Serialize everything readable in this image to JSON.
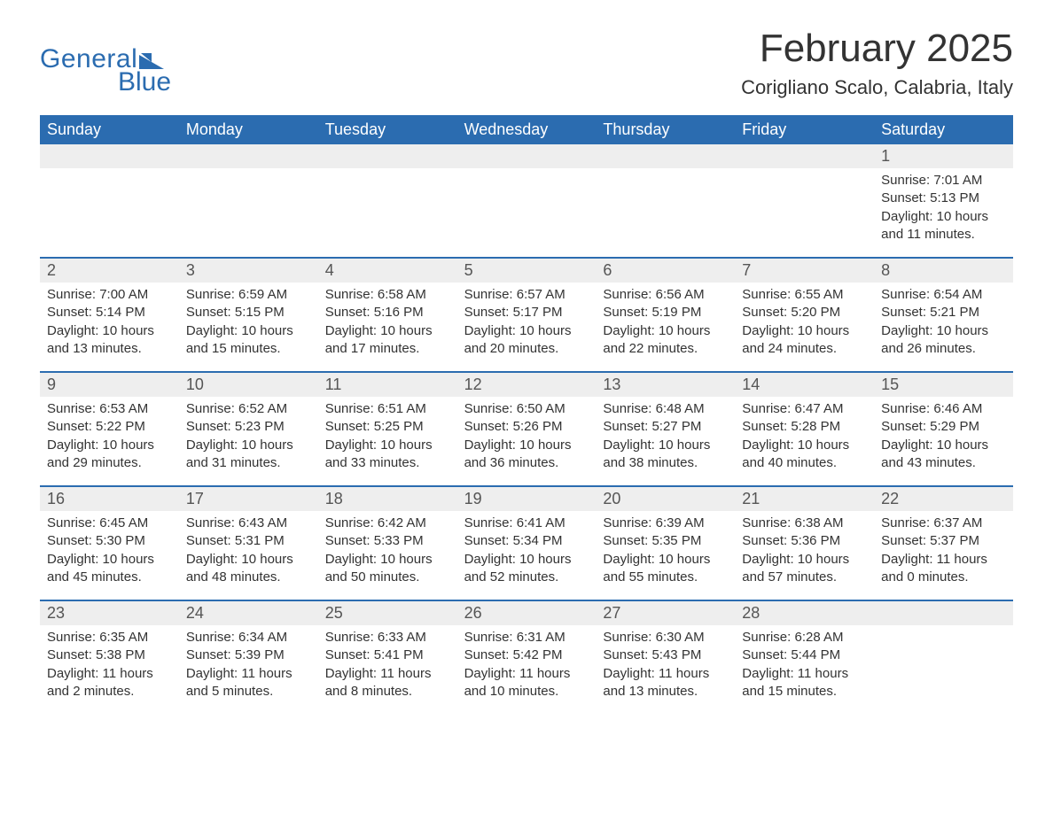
{
  "logo": {
    "text_general": "General",
    "text_blue": "Blue",
    "brand_color": "#2b6cb0"
  },
  "title": "February 2025",
  "location": "Corigliano Scalo, Calabria, Italy",
  "colors": {
    "header_bg": "#2b6cb0",
    "header_text": "#ffffff",
    "daynum_bg": "#eeeeee",
    "daynum_text": "#555555",
    "body_text": "#333333",
    "week_border": "#2b6cb0",
    "page_bg": "#ffffff"
  },
  "weekdays": [
    "Sunday",
    "Monday",
    "Tuesday",
    "Wednesday",
    "Thursday",
    "Friday",
    "Saturday"
  ],
  "weeks": [
    {
      "days": [
        {
          "num": "",
          "sunrise": "",
          "sunset": "",
          "daylight": ""
        },
        {
          "num": "",
          "sunrise": "",
          "sunset": "",
          "daylight": ""
        },
        {
          "num": "",
          "sunrise": "",
          "sunset": "",
          "daylight": ""
        },
        {
          "num": "",
          "sunrise": "",
          "sunset": "",
          "daylight": ""
        },
        {
          "num": "",
          "sunrise": "",
          "sunset": "",
          "daylight": ""
        },
        {
          "num": "",
          "sunrise": "",
          "sunset": "",
          "daylight": ""
        },
        {
          "num": "1",
          "sunrise": "Sunrise: 7:01 AM",
          "sunset": "Sunset: 5:13 PM",
          "daylight": "Daylight: 10 hours and 11 minutes."
        }
      ]
    },
    {
      "days": [
        {
          "num": "2",
          "sunrise": "Sunrise: 7:00 AM",
          "sunset": "Sunset: 5:14 PM",
          "daylight": "Daylight: 10 hours and 13 minutes."
        },
        {
          "num": "3",
          "sunrise": "Sunrise: 6:59 AM",
          "sunset": "Sunset: 5:15 PM",
          "daylight": "Daylight: 10 hours and 15 minutes."
        },
        {
          "num": "4",
          "sunrise": "Sunrise: 6:58 AM",
          "sunset": "Sunset: 5:16 PM",
          "daylight": "Daylight: 10 hours and 17 minutes."
        },
        {
          "num": "5",
          "sunrise": "Sunrise: 6:57 AM",
          "sunset": "Sunset: 5:17 PM",
          "daylight": "Daylight: 10 hours and 20 minutes."
        },
        {
          "num": "6",
          "sunrise": "Sunrise: 6:56 AM",
          "sunset": "Sunset: 5:19 PM",
          "daylight": "Daylight: 10 hours and 22 minutes."
        },
        {
          "num": "7",
          "sunrise": "Sunrise: 6:55 AM",
          "sunset": "Sunset: 5:20 PM",
          "daylight": "Daylight: 10 hours and 24 minutes."
        },
        {
          "num": "8",
          "sunrise": "Sunrise: 6:54 AM",
          "sunset": "Sunset: 5:21 PM",
          "daylight": "Daylight: 10 hours and 26 minutes."
        }
      ]
    },
    {
      "days": [
        {
          "num": "9",
          "sunrise": "Sunrise: 6:53 AM",
          "sunset": "Sunset: 5:22 PM",
          "daylight": "Daylight: 10 hours and 29 minutes."
        },
        {
          "num": "10",
          "sunrise": "Sunrise: 6:52 AM",
          "sunset": "Sunset: 5:23 PM",
          "daylight": "Daylight: 10 hours and 31 minutes."
        },
        {
          "num": "11",
          "sunrise": "Sunrise: 6:51 AM",
          "sunset": "Sunset: 5:25 PM",
          "daylight": "Daylight: 10 hours and 33 minutes."
        },
        {
          "num": "12",
          "sunrise": "Sunrise: 6:50 AM",
          "sunset": "Sunset: 5:26 PM",
          "daylight": "Daylight: 10 hours and 36 minutes."
        },
        {
          "num": "13",
          "sunrise": "Sunrise: 6:48 AM",
          "sunset": "Sunset: 5:27 PM",
          "daylight": "Daylight: 10 hours and 38 minutes."
        },
        {
          "num": "14",
          "sunrise": "Sunrise: 6:47 AM",
          "sunset": "Sunset: 5:28 PM",
          "daylight": "Daylight: 10 hours and 40 minutes."
        },
        {
          "num": "15",
          "sunrise": "Sunrise: 6:46 AM",
          "sunset": "Sunset: 5:29 PM",
          "daylight": "Daylight: 10 hours and 43 minutes."
        }
      ]
    },
    {
      "days": [
        {
          "num": "16",
          "sunrise": "Sunrise: 6:45 AM",
          "sunset": "Sunset: 5:30 PM",
          "daylight": "Daylight: 10 hours and 45 minutes."
        },
        {
          "num": "17",
          "sunrise": "Sunrise: 6:43 AM",
          "sunset": "Sunset: 5:31 PM",
          "daylight": "Daylight: 10 hours and 48 minutes."
        },
        {
          "num": "18",
          "sunrise": "Sunrise: 6:42 AM",
          "sunset": "Sunset: 5:33 PM",
          "daylight": "Daylight: 10 hours and 50 minutes."
        },
        {
          "num": "19",
          "sunrise": "Sunrise: 6:41 AM",
          "sunset": "Sunset: 5:34 PM",
          "daylight": "Daylight: 10 hours and 52 minutes."
        },
        {
          "num": "20",
          "sunrise": "Sunrise: 6:39 AM",
          "sunset": "Sunset: 5:35 PM",
          "daylight": "Daylight: 10 hours and 55 minutes."
        },
        {
          "num": "21",
          "sunrise": "Sunrise: 6:38 AM",
          "sunset": "Sunset: 5:36 PM",
          "daylight": "Daylight: 10 hours and 57 minutes."
        },
        {
          "num": "22",
          "sunrise": "Sunrise: 6:37 AM",
          "sunset": "Sunset: 5:37 PM",
          "daylight": "Daylight: 11 hours and 0 minutes."
        }
      ]
    },
    {
      "days": [
        {
          "num": "23",
          "sunrise": "Sunrise: 6:35 AM",
          "sunset": "Sunset: 5:38 PM",
          "daylight": "Daylight: 11 hours and 2 minutes."
        },
        {
          "num": "24",
          "sunrise": "Sunrise: 6:34 AM",
          "sunset": "Sunset: 5:39 PM",
          "daylight": "Daylight: 11 hours and 5 minutes."
        },
        {
          "num": "25",
          "sunrise": "Sunrise: 6:33 AM",
          "sunset": "Sunset: 5:41 PM",
          "daylight": "Daylight: 11 hours and 8 minutes."
        },
        {
          "num": "26",
          "sunrise": "Sunrise: 6:31 AM",
          "sunset": "Sunset: 5:42 PM",
          "daylight": "Daylight: 11 hours and 10 minutes."
        },
        {
          "num": "27",
          "sunrise": "Sunrise: 6:30 AM",
          "sunset": "Sunset: 5:43 PM",
          "daylight": "Daylight: 11 hours and 13 minutes."
        },
        {
          "num": "28",
          "sunrise": "Sunrise: 6:28 AM",
          "sunset": "Sunset: 5:44 PM",
          "daylight": "Daylight: 11 hours and 15 minutes."
        },
        {
          "num": "",
          "sunrise": "",
          "sunset": "",
          "daylight": ""
        }
      ]
    }
  ]
}
